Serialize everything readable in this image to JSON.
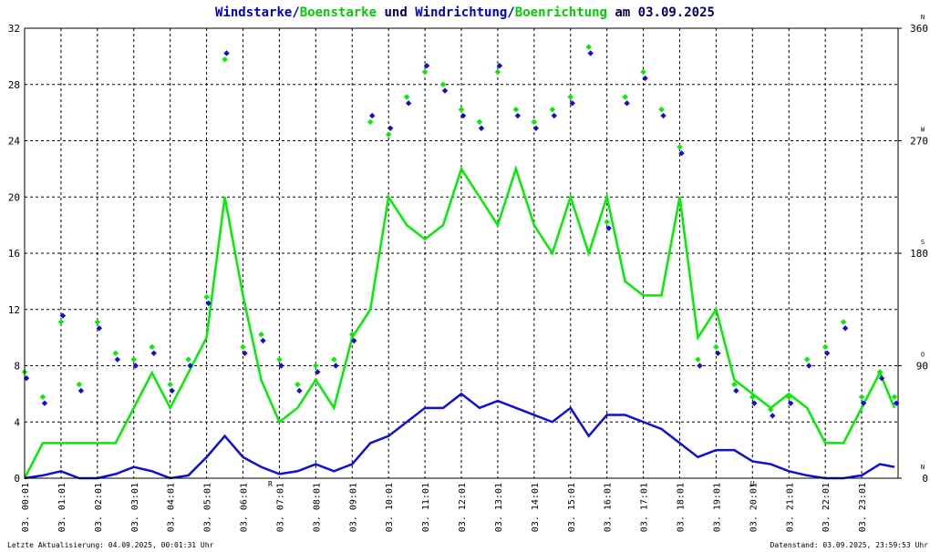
{
  "chart_data": {
    "type": "line",
    "title_parts": [
      {
        "text": "Windstarke",
        "color": "#0000cc"
      },
      {
        "text": "/",
        "color": "#0000cc"
      },
      {
        "text": "Boenstarke",
        "color": "#00cc00"
      },
      {
        "text": " und ",
        "color": "#000066"
      },
      {
        "text": "Windrichtung",
        "color": "#0000cc"
      },
      {
        "text": "/",
        "color": "#0000cc"
      },
      {
        "text": "Boenrichtung",
        "color": "#00cc00"
      },
      {
        "text": " am 03.09.2025",
        "color": "#000066"
      }
    ],
    "x": [
      0,
      0.5,
      1,
      1.5,
      2,
      2.5,
      3,
      3.5,
      4,
      4.5,
      5,
      5.5,
      6,
      6.5,
      7,
      7.5,
      8,
      8.5,
      9,
      9.5,
      10,
      10.5,
      11,
      11.5,
      12,
      12.5,
      13,
      13.5,
      14,
      14.5,
      15,
      15.5,
      16,
      16.5,
      17,
      17.5,
      18,
      18.5,
      19,
      19.5,
      20,
      20.5,
      21,
      21.5,
      22,
      22.5,
      23,
      23.5,
      23.9
    ],
    "series": [
      {
        "name": "Boenstarke",
        "kind": "line",
        "color": "#00ee00",
        "values": [
          0,
          2.5,
          2.5,
          2.5,
          2.5,
          2.5,
          5,
          7.5,
          5,
          7.5,
          10,
          20,
          13,
          7,
          4,
          5,
          7,
          5,
          10,
          12,
          20,
          18,
          17,
          18,
          22,
          20,
          18,
          22,
          18,
          16,
          20,
          16,
          20,
          14,
          13,
          13,
          20,
          10,
          12,
          7,
          6,
          5,
          6,
          5,
          2.5,
          2.5,
          5,
          7.5,
          5
        ]
      },
      {
        "name": "Windstarke",
        "kind": "line",
        "color": "#1010d0",
        "values": [
          0,
          0.2,
          0.5,
          0,
          0,
          0.3,
          0.8,
          0.5,
          0,
          0.2,
          1.5,
          3,
          1.5,
          0.8,
          0.3,
          0.5,
          1,
          0.5,
          1,
          2.5,
          3,
          4,
          5,
          5,
          6,
          5,
          5.5,
          5,
          4.5,
          4,
          5,
          3,
          4.5,
          4.5,
          4,
          3.5,
          2.5,
          1.5,
          2,
          2,
          1.2,
          1,
          0.5,
          0.2,
          0,
          0,
          0.2,
          1,
          0.8
        ]
      },
      {
        "name": "Boenrichtung",
        "kind": "scatter",
        "axis": "y2",
        "color": "#00ee00",
        "values": [
          85,
          65,
          125,
          75,
          125,
          100,
          95,
          105,
          75,
          95,
          145,
          335,
          105,
          115,
          95,
          75,
          90,
          95,
          115,
          285,
          275,
          305,
          325,
          315,
          295,
          285,
          325,
          295,
          285,
          295,
          305,
          345,
          205,
          305,
          325,
          295,
          265,
          95,
          105,
          75,
          65,
          55,
          65,
          95,
          105,
          125,
          65,
          85,
          65
        ]
      },
      {
        "name": "Windrichtung",
        "kind": "scatter",
        "axis": "y2",
        "color": "#1010d0",
        "values": [
          80,
          60,
          130,
          70,
          120,
          95,
          90,
          100,
          70,
          90,
          140,
          340,
          100,
          110,
          90,
          70,
          85,
          90,
          110,
          290,
          280,
          300,
          330,
          310,
          290,
          280,
          330,
          290,
          280,
          290,
          300,
          340,
          200,
          300,
          320,
          290,
          260,
          90,
          100,
          70,
          60,
          50,
          60,
          90,
          100,
          120,
          60,
          80,
          60
        ]
      }
    ],
    "xlim": [
      0,
      24
    ],
    "xticks": [
      {
        "value": 0,
        "label": "03. 00:01"
      },
      {
        "value": 1,
        "label": "03. 01:01"
      },
      {
        "value": 2,
        "label": "03. 02:01"
      },
      {
        "value": 3,
        "label": "03. 03:01"
      },
      {
        "value": 4,
        "label": "03. 04:01"
      },
      {
        "value": 5,
        "label": "03. 05:01"
      },
      {
        "value": 6,
        "label": "03. 06:01"
      },
      {
        "value": 7,
        "label": "03. 07:01"
      },
      {
        "value": 8,
        "label": "03. 08:01"
      },
      {
        "value": 9,
        "label": "03. 09:01"
      },
      {
        "value": 10,
        "label": "03. 10:01"
      },
      {
        "value": 11,
        "label": "03. 11:01"
      },
      {
        "value": 12,
        "label": "03. 12:01"
      },
      {
        "value": 13,
        "label": "03. 13:01"
      },
      {
        "value": 14,
        "label": "03. 14:01"
      },
      {
        "value": 15,
        "label": "03. 15:01"
      },
      {
        "value": 16,
        "label": "03. 16:01"
      },
      {
        "value": 17,
        "label": "03. 17:01"
      },
      {
        "value": 18,
        "label": "03. 18:01"
      },
      {
        "value": 19,
        "label": "03. 19:01"
      },
      {
        "value": 20,
        "label": "03. 20:01"
      },
      {
        "value": 21,
        "label": "03. 21:01"
      },
      {
        "value": 22,
        "label": "03. 22:01"
      },
      {
        "value": 23,
        "label": "03. 23:01"
      }
    ],
    "ylim": [
      0,
      32
    ],
    "yticks": [
      0,
      4,
      8,
      12,
      16,
      20,
      24,
      28,
      32
    ],
    "y2lim": [
      0,
      360
    ],
    "y2ticks": [
      0,
      90,
      180,
      270,
      360
    ],
    "y2tick_compass": [
      "N",
      "O",
      "S",
      "W",
      "N"
    ],
    "grid": true,
    "annotations": [
      {
        "text": "R",
        "x": 6.75,
        "color": "#cc0000"
      },
      {
        "text": "U",
        "x": 20,
        "color": "#cc0000"
      }
    ],
    "footer_left": "Letzte Aktualisierung: 04.09.2025, 00:01:31 Uhr",
    "footer_right": "Datenstand: 03.09.2025, 23:59:53 Uhr"
  }
}
